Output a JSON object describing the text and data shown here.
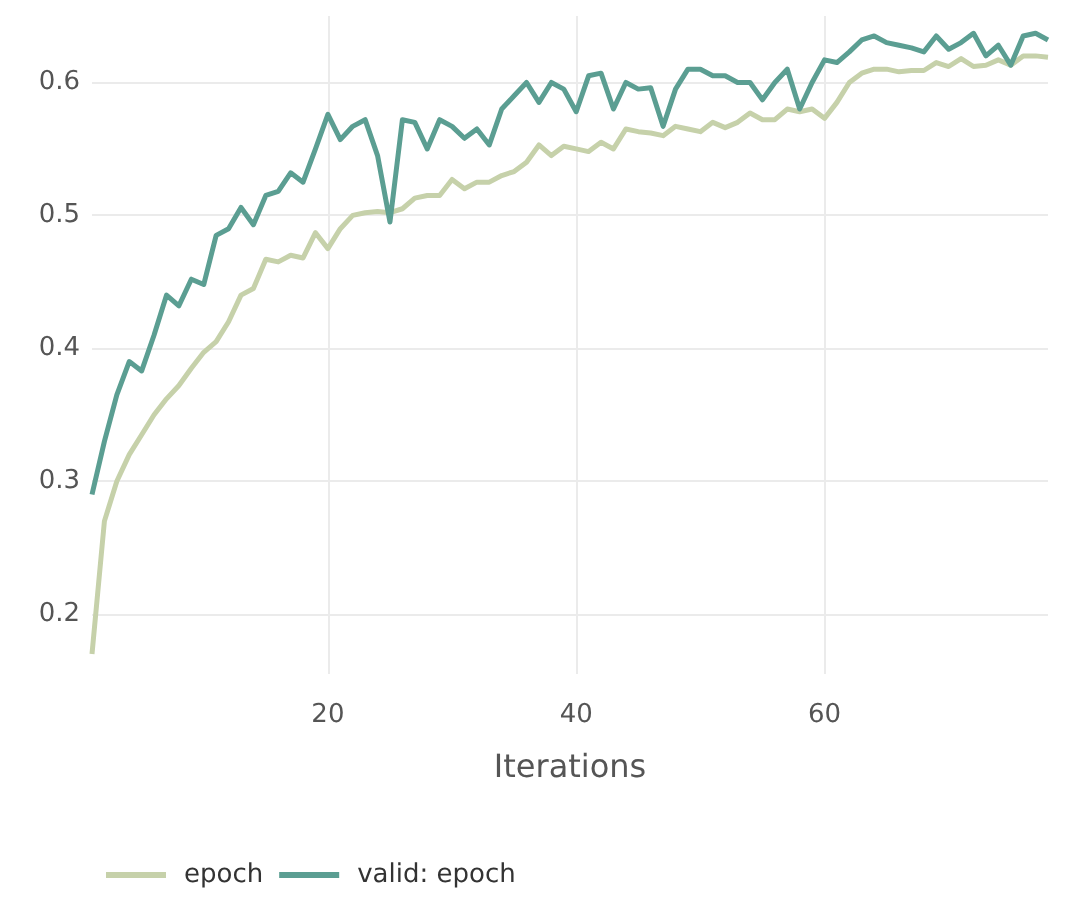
{
  "chart_data": {
    "type": "line",
    "xlabel": "Iterations",
    "x": [
      1,
      2,
      3,
      4,
      5,
      6,
      7,
      8,
      9,
      10,
      11,
      12,
      13,
      14,
      15,
      16,
      17,
      18,
      19,
      20,
      21,
      22,
      23,
      24,
      25,
      26,
      27,
      28,
      29,
      30,
      31,
      32,
      33,
      34,
      35,
      36,
      37,
      38,
      39,
      40,
      41,
      42,
      43,
      44,
      45,
      46,
      47,
      48,
      49,
      50,
      51,
      52,
      53,
      54,
      55,
      56,
      57,
      58,
      59,
      60,
      61,
      62,
      63,
      64,
      65,
      66,
      67,
      68,
      69,
      70,
      71,
      72,
      73,
      74,
      75,
      76,
      77,
      78
    ],
    "series": [
      {
        "name": "epoch",
        "color": "#c6d1aa",
        "values": [
          0.17,
          0.27,
          0.3,
          0.32,
          0.335,
          0.35,
          0.362,
          0.372,
          0.385,
          0.397,
          0.405,
          0.42,
          0.44,
          0.445,
          0.467,
          0.465,
          0.47,
          0.468,
          0.487,
          0.475,
          0.49,
          0.5,
          0.502,
          0.503,
          0.502,
          0.505,
          0.513,
          0.515,
          0.515,
          0.527,
          0.52,
          0.525,
          0.525,
          0.53,
          0.533,
          0.54,
          0.553,
          0.545,
          0.552,
          0.55,
          0.548,
          0.555,
          0.55,
          0.565,
          0.563,
          0.562,
          0.56,
          0.567,
          0.565,
          0.563,
          0.57,
          0.566,
          0.57,
          0.577,
          0.572,
          0.572,
          0.58,
          0.578,
          0.58,
          0.573,
          0.585,
          0.6,
          0.607,
          0.61,
          0.61,
          0.608,
          0.609,
          0.609,
          0.615,
          0.612,
          0.618,
          0.612,
          0.613,
          0.617,
          0.613,
          0.62,
          0.62,
          0.619
        ]
      },
      {
        "name": "valid: epoch",
        "color": "#5b9e92",
        "values": [
          0.29,
          0.33,
          0.365,
          0.39,
          0.383,
          0.41,
          0.44,
          0.432,
          0.452,
          0.448,
          0.485,
          0.49,
          0.506,
          0.493,
          0.515,
          0.518,
          0.532,
          0.525,
          0.55,
          0.576,
          0.557,
          0.567,
          0.572,
          0.545,
          0.495,
          0.572,
          0.57,
          0.55,
          0.572,
          0.567,
          0.558,
          0.565,
          0.553,
          0.58,
          0.59,
          0.6,
          0.585,
          0.6,
          0.595,
          0.578,
          0.605,
          0.607,
          0.58,
          0.6,
          0.595,
          0.596,
          0.567,
          0.595,
          0.61,
          0.61,
          0.605,
          0.605,
          0.6,
          0.6,
          0.587,
          0.6,
          0.61,
          0.58,
          0.6,
          0.617,
          0.615,
          0.623,
          0.632,
          0.635,
          0.63,
          0.628,
          0.626,
          0.623,
          0.635,
          0.625,
          0.63,
          0.637,
          0.62,
          0.628,
          0.613,
          0.635,
          0.637,
          0.632
        ]
      }
    ],
    "xlim": [
      1,
      78
    ],
    "xticks": [
      20,
      40,
      60
    ],
    "ylim": [
      0.155,
      0.65
    ],
    "yticks": [
      0.2,
      0.3,
      0.4,
      0.5,
      0.6
    ],
    "grid": true,
    "legend": "bottom left",
    "marker": "none",
    "line_style": "solid"
  }
}
